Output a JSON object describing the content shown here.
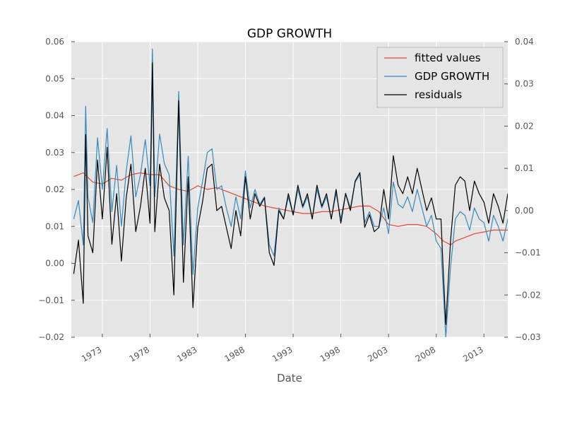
{
  "chart_data": {
    "type": "line",
    "title": "GDP GROWTH",
    "xlabel": "Date",
    "ylabel": "",
    "x_tick_labels": [
      "1973",
      "1978",
      "1983",
      "1988",
      "1993",
      "1998",
      "2003",
      "2008",
      "2013"
    ],
    "xlim": [
      1969.75,
      2015.5
    ],
    "ylim": [
      -0.02,
      0.06
    ],
    "y_ticks": [
      -0.02,
      -0.01,
      0.0,
      0.01,
      0.02,
      0.03,
      0.04,
      0.05,
      0.06
    ],
    "y_tick_labels": [
      "−0.02",
      "−0.01",
      "0.00",
      "0.01",
      "0.02",
      "0.03",
      "0.04",
      "0.05",
      "0.06"
    ],
    "ylim_right": [
      -0.03,
      0.04
    ],
    "y_ticks_right": [
      -0.03,
      -0.02,
      -0.01,
      0.0,
      0.01,
      0.02,
      0.03,
      0.04
    ],
    "y_tick_labels_right": [
      "−0.03",
      "−0.02",
      "−0.01",
      "0.00",
      "0.01",
      "0.02",
      "0.03",
      "0.04"
    ],
    "grid": true,
    "background": "#e5e5e5",
    "legend_position": "top-right",
    "series": [
      {
        "name": "fitted values",
        "color": "#e24a33",
        "axis": "left",
        "x": [
          1970.0,
          1971.0,
          1972.0,
          1973.0,
          1974.0,
          1975.0,
          1976.0,
          1977.0,
          1978.0,
          1979.0,
          1980.0,
          1981.0,
          1982.0,
          1983.0,
          1984.0,
          1985.0,
          1986.0,
          1987.0,
          1988.0,
          1989.0,
          1990.0,
          1991.0,
          1992.0,
          1993.0,
          1994.0,
          1995.0,
          1996.0,
          1997.0,
          1998.0,
          1999.0,
          2000.0,
          2001.0,
          2002.0,
          2003.0,
          2004.0,
          2005.0,
          2006.0,
          2007.0,
          2008.0,
          2008.75,
          2009.5,
          2010.0,
          2011.0,
          2012.0,
          2013.0,
          2014.0,
          2015.0,
          2015.5
        ],
        "values": [
          0.0235,
          0.0245,
          0.022,
          0.0215,
          0.023,
          0.0225,
          0.024,
          0.0245,
          0.024,
          0.024,
          0.021,
          0.02,
          0.0195,
          0.021,
          0.02,
          0.0205,
          0.0195,
          0.0185,
          0.0175,
          0.0165,
          0.0155,
          0.015,
          0.0145,
          0.014,
          0.0135,
          0.0135,
          0.014,
          0.014,
          0.0145,
          0.015,
          0.0155,
          0.0155,
          0.014,
          0.0105,
          0.01,
          0.0105,
          0.0105,
          0.01,
          0.008,
          0.006,
          0.005,
          0.006,
          0.007,
          0.008,
          0.0085,
          0.009,
          0.009,
          0.009
        ]
      },
      {
        "name": "GDP GROWTH",
        "color": "#348abd",
        "axis": "left",
        "x": [
          1970.0,
          1970.5,
          1971.0,
          1971.25,
          1971.5,
          1972.0,
          1972.5,
          1973.0,
          1973.5,
          1974.0,
          1974.5,
          1975.0,
          1975.5,
          1976.0,
          1976.5,
          1977.0,
          1977.5,
          1978.0,
          1978.25,
          1978.5,
          1979.0,
          1979.5,
          1980.0,
          1980.5,
          1981.0,
          1981.5,
          1982.0,
          1982.5,
          1983.0,
          1983.5,
          1984.0,
          1984.5,
          1985.0,
          1985.5,
          1986.0,
          1986.5,
          1987.0,
          1987.5,
          1988.0,
          1988.5,
          1989.0,
          1989.5,
          1990.0,
          1990.5,
          1991.0,
          1991.5,
          1992.0,
          1992.5,
          1993.0,
          1993.5,
          1994.0,
          1994.5,
          1995.0,
          1995.5,
          1996.0,
          1996.5,
          1997.0,
          1997.5,
          1998.0,
          1998.5,
          1999.0,
          1999.5,
          2000.0,
          2000.5,
          2001.0,
          2001.5,
          2002.0,
          2002.5,
          2003.0,
          2003.5,
          2004.0,
          2004.5,
          2005.0,
          2005.5,
          2006.0,
          2006.5,
          2007.0,
          2007.5,
          2008.0,
          2008.5,
          2008.75,
          2009.0,
          2009.5,
          2010.0,
          2010.5,
          2011.0,
          2011.5,
          2012.0,
          2012.5,
          2013.0,
          2013.5,
          2014.0,
          2014.5,
          2015.0,
          2015.5
        ],
        "values": [
          0.012,
          0.017,
          0.005,
          0.0425,
          0.018,
          0.011,
          0.034,
          0.02,
          0.0365,
          0.014,
          0.0265,
          0.01,
          0.025,
          0.0345,
          0.018,
          0.024,
          0.0335,
          0.021,
          0.058,
          0.018,
          0.035,
          0.027,
          0.024,
          0.002,
          0.0465,
          0.005,
          0.029,
          -0.003,
          0.015,
          0.022,
          0.03,
          0.031,
          0.02,
          0.021,
          0.015,
          0.01,
          0.018,
          0.012,
          0.025,
          0.015,
          0.02,
          0.016,
          0.018,
          0.005,
          0.002,
          0.015,
          0.012,
          0.018,
          0.013,
          0.02,
          0.015,
          0.018,
          0.012,
          0.02,
          0.015,
          0.018,
          0.012,
          0.019,
          0.012,
          0.019,
          0.015,
          0.022,
          0.024,
          0.011,
          0.014,
          0.01,
          0.01,
          0.015,
          0.008,
          0.022,
          0.016,
          0.015,
          0.018,
          0.014,
          0.02,
          0.015,
          0.01,
          0.013,
          0.006,
          0.004,
          -0.008,
          -0.02,
          -0.001,
          0.012,
          0.014,
          0.013,
          0.009,
          0.015,
          0.012,
          0.011,
          0.006,
          0.013,
          0.01,
          0.006,
          0.012
        ]
      },
      {
        "name": "residuals",
        "color": "#000000",
        "axis": "right",
        "x": [
          1970.0,
          1970.5,
          1971.0,
          1971.25,
          1971.5,
          1972.0,
          1972.5,
          1973.0,
          1973.5,
          1974.0,
          1974.5,
          1975.0,
          1975.5,
          1976.0,
          1976.5,
          1977.0,
          1977.5,
          1978.0,
          1978.25,
          1978.5,
          1979.0,
          1979.5,
          1980.0,
          1980.5,
          1981.0,
          1981.5,
          1982.0,
          1982.5,
          1983.0,
          1983.5,
          1984.0,
          1984.5,
          1985.0,
          1985.5,
          1986.0,
          1986.5,
          1987.0,
          1987.5,
          1988.0,
          1988.5,
          1989.0,
          1989.5,
          1990.0,
          1990.5,
          1991.0,
          1991.5,
          1992.0,
          1992.5,
          1993.0,
          1993.5,
          1994.0,
          1994.5,
          1995.0,
          1995.5,
          1996.0,
          1996.5,
          1997.0,
          1997.5,
          1998.0,
          1998.5,
          1999.0,
          1999.5,
          2000.0,
          2000.5,
          2001.0,
          2001.5,
          2002.0,
          2002.5,
          2003.0,
          2003.5,
          2004.0,
          2004.5,
          2005.0,
          2005.5,
          2006.0,
          2006.5,
          2007.0,
          2007.5,
          2008.0,
          2008.5,
          2008.75,
          2009.0,
          2009.5,
          2010.0,
          2010.5,
          2011.0,
          2011.5,
          2012.0,
          2012.5,
          2013.0,
          2013.5,
          2014.0,
          2014.5,
          2015.0,
          2015.5
        ],
        "values": [
          -0.015,
          -0.007,
          -0.022,
          0.018,
          -0.006,
          -0.01,
          0.012,
          -0.002,
          0.015,
          -0.008,
          0.004,
          -0.012,
          0.003,
          0.011,
          -0.005,
          0.001,
          0.01,
          -0.003,
          0.035,
          -0.005,
          0.011,
          0.003,
          0.0,
          -0.02,
          0.026,
          -0.017,
          0.008,
          -0.023,
          -0.004,
          0.002,
          0.01,
          0.011,
          0.0,
          0.001,
          -0.004,
          -0.009,
          0.0,
          -0.006,
          0.008,
          -0.002,
          0.004,
          0.001,
          0.003,
          -0.01,
          -0.013,
          0.0,
          -0.002,
          0.004,
          -0.001,
          0.006,
          0.001,
          0.004,
          -0.002,
          0.006,
          0.001,
          0.004,
          -0.002,
          0.005,
          -0.003,
          0.004,
          0.0,
          0.007,
          0.009,
          -0.004,
          -0.001,
          -0.005,
          -0.004,
          0.005,
          -0.002,
          0.013,
          0.006,
          0.004,
          0.008,
          0.004,
          0.01,
          0.005,
          0.0,
          0.003,
          -0.002,
          -0.002,
          -0.015,
          -0.027,
          -0.007,
          0.006,
          0.008,
          0.007,
          0.0,
          0.007,
          0.004,
          0.002,
          -0.003,
          0.004,
          0.001,
          -0.003,
          0.004
        ]
      }
    ]
  }
}
